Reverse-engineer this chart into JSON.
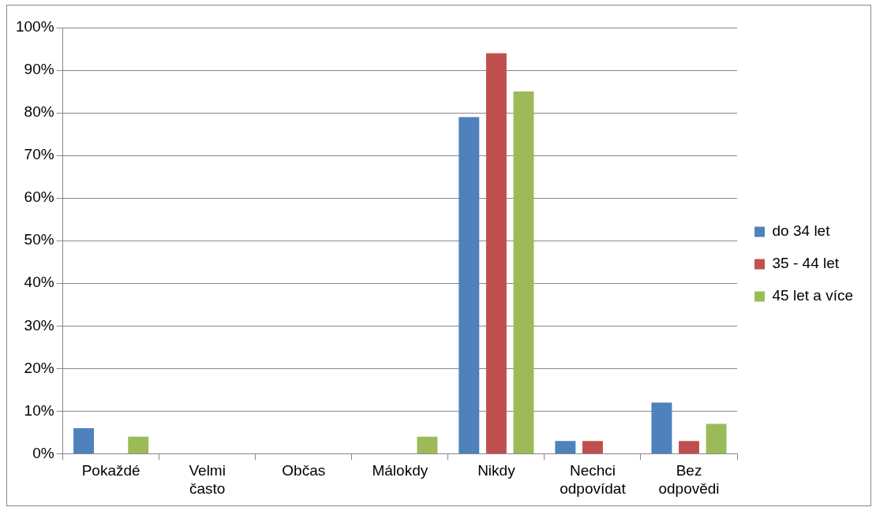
{
  "chart_data": {
    "type": "bar",
    "categories": [
      "Pokaždé",
      "Velmi často",
      "Občas",
      "Málokdy",
      "Nikdy",
      "Nechci odpovídat",
      "Bez odpovědi"
    ],
    "series": [
      {
        "name": "do 34 let",
        "color": "#4f81bd",
        "values": [
          6,
          0,
          0,
          0,
          79,
          3,
          12
        ]
      },
      {
        "name": "35 - 44 let",
        "color": "#c0504d",
        "values": [
          0,
          0,
          0,
          0,
          94,
          3,
          3
        ]
      },
      {
        "name": "45 let a více",
        "color": "#9bbb59",
        "values": [
          4,
          0,
          0,
          4,
          85,
          0,
          7
        ]
      }
    ],
    "ylim": [
      0,
      100
    ],
    "yticks": [
      {
        "value": 0,
        "label": "0%"
      },
      {
        "value": 10,
        "label": "10%"
      },
      {
        "value": 20,
        "label": "20%"
      },
      {
        "value": 30,
        "label": "30%"
      },
      {
        "value": 40,
        "label": "40%"
      },
      {
        "value": 50,
        "label": "50%"
      },
      {
        "value": 60,
        "label": "60%"
      },
      {
        "value": 70,
        "label": "70%"
      },
      {
        "value": 80,
        "label": "80%"
      },
      {
        "value": 90,
        "label": "90%"
      },
      {
        "value": 100,
        "label": "100%"
      }
    ],
    "grid": "y",
    "legend": "right"
  }
}
